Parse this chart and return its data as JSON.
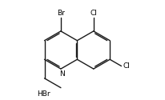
{
  "bg_color": "#ffffff",
  "bond_color": "#1a1a1a",
  "text_color": "#000000",
  "label_Br": "Br",
  "label_Cl1": "Cl",
  "label_Cl2": "Cl",
  "label_N": "N",
  "label_HBr": "HBr",
  "figsize": [
    2.07,
    1.25
  ],
  "dpi": 100,
  "bond_lw": 1.0,
  "font_size": 6.5
}
